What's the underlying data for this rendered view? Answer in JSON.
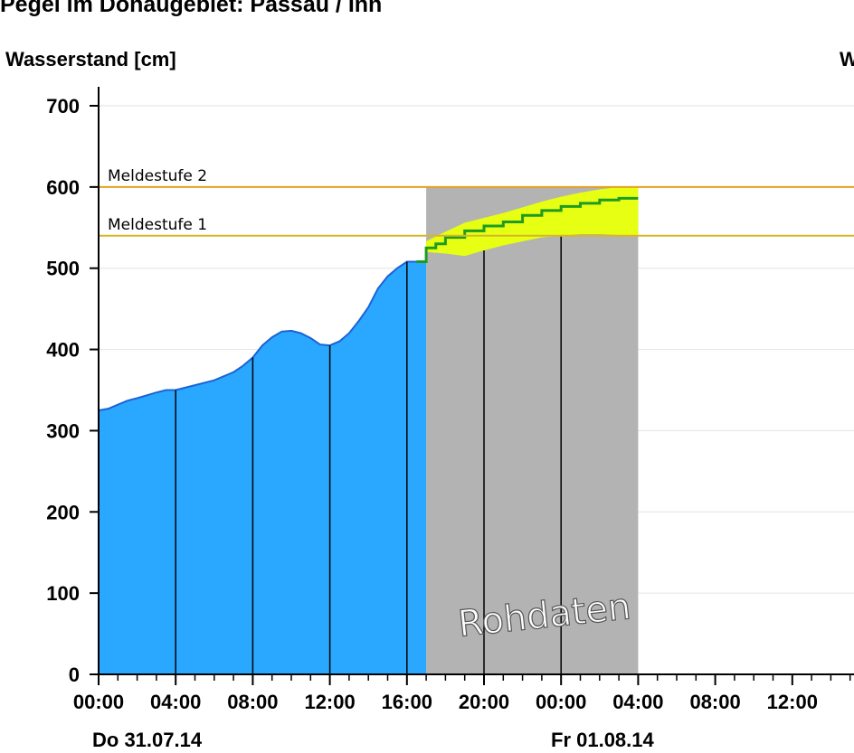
{
  "page": {
    "title": "Pegel im Donaugebiet:  Passau / Inn",
    "right_label_fragment": "W"
  },
  "chart_data": {
    "type": "area",
    "title": "Pegel im Donaugebiet:  Passau / Inn",
    "ylabel": "Wasserstand [cm]",
    "xlabel": "",
    "ylim": [
      0,
      700
    ],
    "y_ticks": [
      0,
      100,
      200,
      300,
      400,
      500,
      600,
      700
    ],
    "x_unit": "hours since Do 31.07.14 00:00",
    "xlim": [
      0,
      39.5
    ],
    "x_tick_labels": [
      {
        "hour": 0,
        "label": "00:00"
      },
      {
        "hour": 4,
        "label": "04:00"
      },
      {
        "hour": 8,
        "label": "08:00"
      },
      {
        "hour": 12,
        "label": "12:00"
      },
      {
        "hour": 16,
        "label": "16:00"
      },
      {
        "hour": 20,
        "label": "20:00"
      },
      {
        "hour": 24,
        "label": "00:00"
      },
      {
        "hour": 28,
        "label": "04:00"
      },
      {
        "hour": 32,
        "label": "08:00"
      },
      {
        "hour": 36,
        "label": "12:00"
      }
    ],
    "date_labels": [
      {
        "hour": 0,
        "label": "Do 31.07.14"
      },
      {
        "hour": 24,
        "label": "Fr 01.08.14"
      }
    ],
    "thresholds": [
      {
        "name": "Meldestufe 1",
        "value": 540,
        "color": "#d4b829"
      },
      {
        "name": "Meldestufe 2",
        "value": 600,
        "color": "#e8a020"
      }
    ],
    "series": [
      {
        "name": "",
        "kind": "measured",
        "color": "#2aa8ff",
        "x": [
          0,
          0.5,
          1,
          1.5,
          2,
          3,
          3.5,
          4,
          5,
          6,
          6.5,
          7,
          7.5,
          8,
          8.5,
          9,
          9.5,
          10,
          10.5,
          11,
          11.5,
          12,
          12.5,
          13,
          13.5,
          14,
          14.5,
          15,
          15.5,
          16,
          16.5,
          17
        ],
        "y": [
          325,
          327,
          332,
          337,
          340,
          347,
          350,
          350,
          356,
          362,
          367,
          372,
          380,
          390,
          405,
          415,
          422,
          423,
          420,
          414,
          406,
          405,
          410,
          420,
          435,
          452,
          475,
          490,
          500,
          508,
          508,
          508
        ]
      },
      {
        "name": "",
        "kind": "forecast",
        "color": "#1f9c1f",
        "x": [
          16.5,
          17,
          17.5,
          18,
          19,
          20,
          21,
          22,
          23,
          24,
          25,
          26,
          27,
          28
        ],
        "y": [
          508,
          525,
          530,
          538,
          546,
          552,
          557,
          565,
          571,
          576,
          580,
          584,
          586,
          586
        ]
      },
      {
        "name": "",
        "kind": "forecast_band",
        "color": "#e6ff12",
        "x": [
          17,
          18,
          19,
          20,
          21,
          22,
          23,
          24,
          25,
          26,
          27,
          28
        ],
        "lower": [
          520,
          518,
          515,
          522,
          528,
          533,
          538,
          540,
          542,
          542,
          541,
          540
        ],
        "upper": [
          533,
          545,
          556,
          562,
          568,
          575,
          582,
          588,
          593,
          597,
          600,
          600
        ]
      }
    ],
    "shaded_region": {
      "from_hour": 17,
      "to_hour": 28,
      "color": "#b3b3b3"
    },
    "watermark": "Rohdaten",
    "grid": true
  }
}
